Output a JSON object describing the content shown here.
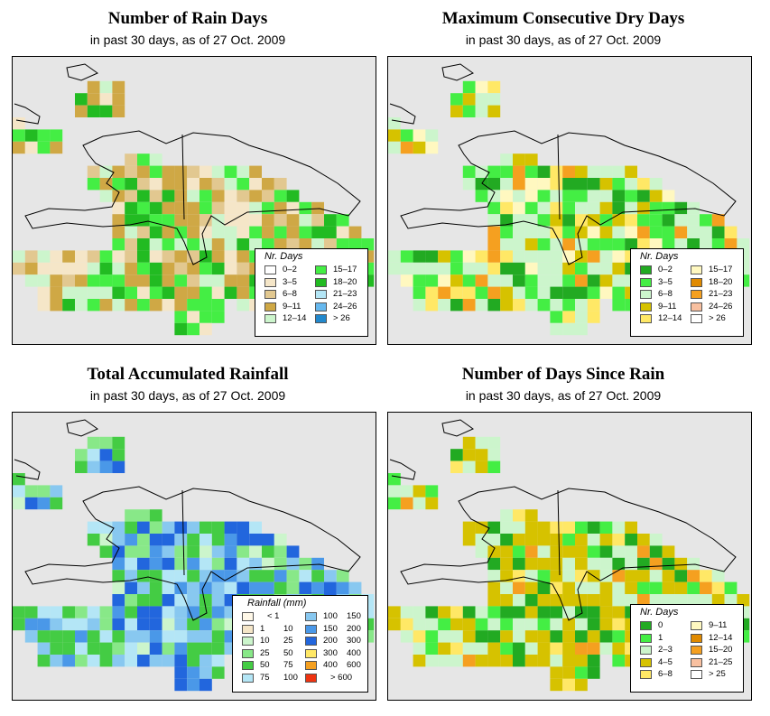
{
  "panels": [
    {
      "id": "rain-days",
      "title": "Number of Rain Days",
      "subtitle": "in past 30 days, as of  27 Oct. 2009",
      "legend": {
        "title": "Nr. Days",
        "items": [
          {
            "label": "0–2",
            "color": "#ffffff"
          },
          {
            "label": "3–5",
            "color": "#f5e6c8"
          },
          {
            "label": "6–8",
            "color": "#e2c890"
          },
          {
            "label": "9–11",
            "color": "#cfa845"
          },
          {
            "label": "12–14",
            "color": "#ccf5cc"
          },
          {
            "label": "15–17",
            "color": "#44ee44"
          },
          {
            "label": "18–20",
            "color": "#22bb22"
          },
          {
            "label": "21–23",
            "color": "#b4e6f6"
          },
          {
            "label": "24–26",
            "color": "#66b8ee"
          },
          {
            "label": "> 26",
            "color": "#2288cc"
          }
        ]
      }
    },
    {
      "id": "dry-days",
      "title": "Maximum Consecutive Dry Days",
      "subtitle": "in past 30 days, as of  27 Oct. 2009",
      "legend": {
        "title": "Nr. Days",
        "items": [
          {
            "label": "0–2",
            "color": "#22aa22"
          },
          {
            "label": "3–5",
            "color": "#44ee44"
          },
          {
            "label": "6–8",
            "color": "#ccf5cc"
          },
          {
            "label": "9–11",
            "color": "#d6c200"
          },
          {
            "label": "12–14",
            "color": "#ffe866"
          },
          {
            "label": "15–17",
            "color": "#fff8c0"
          },
          {
            "label": "18–20",
            "color": "#e08a00"
          },
          {
            "label": "21–23",
            "color": "#f5a020"
          },
          {
            "label": "24–26",
            "color": "#f8c0a0"
          },
          {
            "label": "> 26",
            "color": "#ffffff"
          }
        ]
      }
    },
    {
      "id": "rainfall",
      "title": "Total Accumulated Rainfall",
      "subtitle": "in past 30 days, as of  27 Oct. 2009",
      "legend": {
        "title": "Rainfall (mm)",
        "items": [
          {
            "min": "",
            "max": "< 1",
            "color": "#fff8e8"
          },
          {
            "min": "1",
            "max": "10",
            "color": "#f5e6c8"
          },
          {
            "min": "10",
            "max": "25",
            "color": "#ccf5cc"
          },
          {
            "min": "25",
            "max": "50",
            "color": "#88e888"
          },
          {
            "min": "50",
            "max": "75",
            "color": "#44cc44"
          },
          {
            "min": "75",
            "max": "100",
            "color": "#b4e6f6"
          },
          {
            "min": "100",
            "max": "150",
            "color": "#88c8f0"
          },
          {
            "min": "150",
            "max": "200",
            "color": "#4a98e8"
          },
          {
            "min": "200",
            "max": "300",
            "color": "#2266dd"
          },
          {
            "min": "300",
            "max": "400",
            "color": "#ffe866"
          },
          {
            "min": "400",
            "max": "600",
            "color": "#f5a020"
          },
          {
            "min": "",
            "max": "> 600",
            "color": "#ee3311"
          }
        ]
      }
    },
    {
      "id": "since-rain",
      "title": "Number of Days Since Rain",
      "subtitle": "in past 30 days, as of  27 Oct. 2009",
      "legend": {
        "title": "Nr. Days",
        "items": [
          {
            "label": "0",
            "color": "#22aa22"
          },
          {
            "label": "1",
            "color": "#44ee44"
          },
          {
            "label": "2–3",
            "color": "#ccf5cc"
          },
          {
            "label": "4–5",
            "color": "#d6c200"
          },
          {
            "label": "6–8",
            "color": "#ffe866"
          },
          {
            "label": "9–11",
            "color": "#fff8c0"
          },
          {
            "label": "12–14",
            "color": "#e08a00"
          },
          {
            "label": "15–20",
            "color": "#f5a020"
          },
          {
            "label": "21–25",
            "color": "#f8c0a0"
          },
          {
            "label": "> 25",
            "color": "#ffffff"
          }
        ]
      }
    }
  ]
}
